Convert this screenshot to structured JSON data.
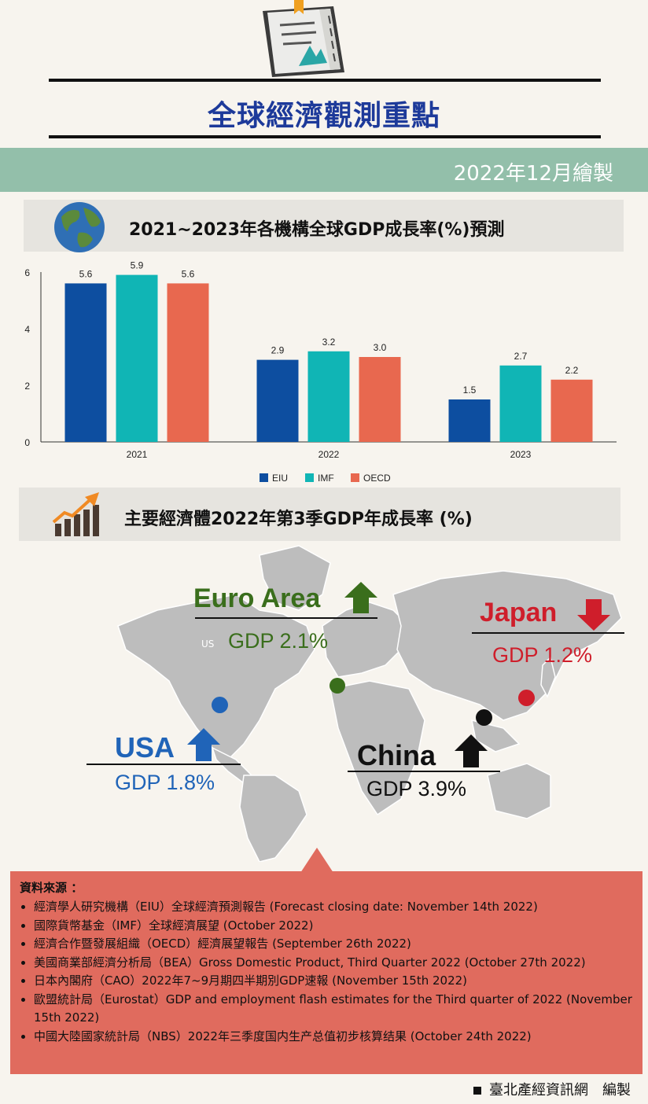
{
  "header": {
    "title": "全球經濟觀測重點",
    "date": "2022年12月繪製"
  },
  "section1": {
    "title": "2021~2023年各機構全球GDP成長率(%)預測"
  },
  "section2": {
    "title": "主要經濟體2022年第3季GDP年成長率 (%)"
  },
  "chart_data": {
    "type": "bar",
    "title": "2021~2023年各機構全球GDP成長率(%)預測",
    "categories": [
      "2021",
      "2022",
      "2023"
    ],
    "series": [
      {
        "name": "EIU",
        "values": [
          5.6,
          2.9,
          1.5
        ],
        "color": "#0d4ea0"
      },
      {
        "name": "IMF",
        "values": [
          5.9,
          3.2,
          2.7
        ],
        "color": "#10b5b5"
      },
      {
        "name": "OECD",
        "values": [
          5.6,
          3.0,
          2.2
        ],
        "color": "#e8684f"
      }
    ],
    "data_labels": [
      [
        "5.6",
        "2.9",
        "1.5"
      ],
      [
        "5.9",
        "3.2",
        "2.7"
      ],
      [
        "5.6",
        "3.0",
        "2.2"
      ]
    ],
    "ylim": [
      0,
      6
    ],
    "yticks": [
      0,
      2,
      4,
      6
    ],
    "grid": false,
    "legend": "bottom"
  },
  "map": {
    "us_label": "US",
    "regions": [
      {
        "name": "Euro Area",
        "gdp": "GDP 2.1%",
        "trend": "up",
        "color": "#3a6e1c"
      },
      {
        "name": "Japan",
        "gdp": "GDP 1.2%",
        "trend": "down",
        "color": "#cf1e2b"
      },
      {
        "name": "USA",
        "gdp": "GDP 1.8%",
        "trend": "up",
        "color": "#2064b8"
      },
      {
        "name": "China",
        "gdp": "GDP 3.9%",
        "trend": "up",
        "color": "#111111"
      }
    ]
  },
  "sources": {
    "title": "資料來源 ：",
    "items": [
      "經濟學人研究機構（EIU）全球經濟預測報告 (Forecast closing date: November 14th 2022)",
      "國際貨幣基金（IMF）全球經濟展望 (October 2022)",
      "經濟合作暨發展組織（OECD）經濟展望報告 (September 26th 2022)",
      "美國商業部經濟分析局（BEA）Gross Domestic Product, Third Quarter 2022 (October 27th 2022)",
      "日本內閣府（CAO）2022年7~9月期四半期別GDP速報 (November 15th 2022)",
      "歐盟統計局（Eurostat）GDP and employment flash estimates for the Third quarter of 2022 (November 15th 2022)",
      "中國大陸國家統計局（NBS）2022年三季度国内生产总值初步核算结果 (October 24th 2022)"
    ]
  },
  "footer": {
    "text": "臺北產經資訊網　編製"
  },
  "icons": {
    "book": "open-book-icon",
    "globe": "globe-icon",
    "growth": "growth-chart-icon",
    "up": "arrow-up-icon",
    "down": "arrow-down-icon"
  }
}
